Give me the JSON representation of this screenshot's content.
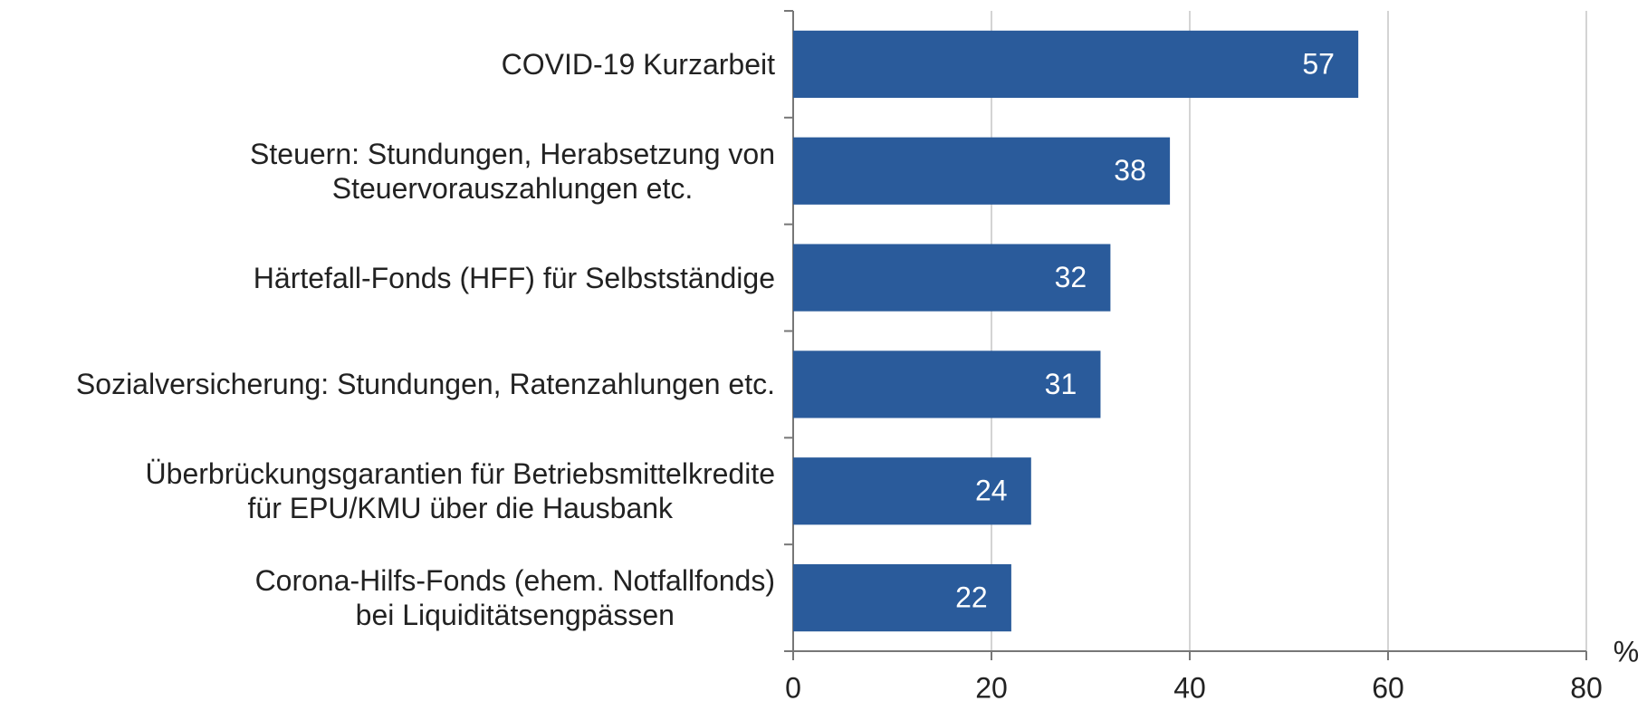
{
  "chart_data": {
    "type": "bar",
    "orientation": "horizontal",
    "categories": [
      "COVID-19 Kurzarbeit",
      "Steuern: Stundungen, Herabsetzung von\nSteuervorauszahlungen etc.",
      "Härtefall-Fonds (HFF) für Selbstständige",
      "Sozialversicherung: Stundungen, Ratenzahlungen etc.",
      "Überbrückungsgarantien für Betriebsmittelkredite\nfür EPU/KMU über die Hausbank",
      "Corona-Hilfs-Fonds (ehem. Notfallfonds)\nbei Liquiditätsengpässen"
    ],
    "values": [
      57,
      38,
      32,
      31,
      24,
      22
    ],
    "color": "#2a5b9b",
    "xlabel": "%",
    "xlim": [
      0,
      80
    ],
    "xticks": [
      0,
      20,
      40,
      60,
      80
    ],
    "grid": true
  }
}
